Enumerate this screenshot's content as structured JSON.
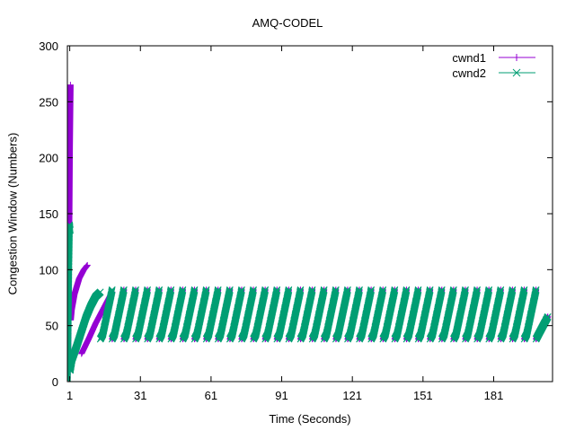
{
  "chart_data": {
    "type": "line",
    "title": "AMQ-CODEL",
    "xlabel": "Time (Seconds)",
    "ylabel": "Congestion Window (Numbers)",
    "xlim": [
      0,
      206
    ],
    "ylim": [
      0,
      300
    ],
    "x_ticks": [
      1,
      31,
      61,
      91,
      121,
      151,
      181
    ],
    "y_ticks": [
      0,
      50,
      100,
      150,
      200,
      250,
      300
    ],
    "grid": false,
    "legend_position": "top-right",
    "series": [
      {
        "name": "cwnd1",
        "color": "#9400d3",
        "marker": "plus",
        "segments": [
          [
            [
              0,
              2
            ],
            [
              0.3,
              30
            ],
            [
              0.5,
              90
            ],
            [
              0.8,
              150
            ],
            [
              1.0,
              210
            ],
            [
              1.3,
              265
            ]
          ],
          [
            [
              1.4,
              55
            ],
            [
              1.8,
              64
            ],
            [
              3,
              78
            ],
            [
              5,
              92
            ],
            [
              7,
              100
            ],
            [
              8.5,
              104
            ]
          ],
          [
            [
              6,
              25
            ],
            [
              9,
              38
            ],
            [
              12,
              52
            ],
            [
              15,
              64
            ],
            [
              18,
              76
            ],
            [
              19,
              80
            ]
          ],
          [
            [
              19,
              38
            ],
            [
              20,
              42
            ],
            [
              24,
              82
            ]
          ],
          [
            [
              24,
              38
            ],
            [
              25,
              42
            ],
            [
              29,
              82
            ]
          ],
          [
            [
              29,
              38
            ],
            [
              30,
              42
            ],
            [
              34,
              82
            ]
          ],
          [
            [
              34,
              38
            ],
            [
              35,
              42
            ],
            [
              39,
              82
            ]
          ],
          [
            [
              39,
              38
            ],
            [
              40,
              42
            ],
            [
              44,
              82
            ]
          ],
          [
            [
              44,
              38
            ],
            [
              45,
              42
            ],
            [
              49,
              82
            ]
          ],
          [
            [
              49,
              38
            ],
            [
              50,
              42
            ],
            [
              54,
              82
            ]
          ],
          [
            [
              54,
              38
            ],
            [
              55,
              42
            ],
            [
              59,
              82
            ]
          ],
          [
            [
              59,
              38
            ],
            [
              60,
              42
            ],
            [
              64,
              82
            ]
          ],
          [
            [
              64,
              38
            ],
            [
              65,
              42
            ],
            [
              69,
              82
            ]
          ],
          [
            [
              69,
              38
            ],
            [
              70,
              42
            ],
            [
              74,
              82
            ]
          ],
          [
            [
              74,
              38
            ],
            [
              75,
              42
            ],
            [
              79,
              82
            ]
          ],
          [
            [
              79,
              38
            ],
            [
              80,
              42
            ],
            [
              84,
              82
            ]
          ],
          [
            [
              84,
              38
            ],
            [
              85,
              42
            ],
            [
              89,
              82
            ]
          ],
          [
            [
              89,
              38
            ],
            [
              90,
              42
            ],
            [
              94,
              82
            ]
          ],
          [
            [
              94,
              38
            ],
            [
              95,
              42
            ],
            [
              99,
              82
            ]
          ],
          [
            [
              99,
              38
            ],
            [
              100,
              42
            ],
            [
              104,
              82
            ]
          ],
          [
            [
              104,
              38
            ],
            [
              105,
              42
            ],
            [
              109,
              82
            ]
          ],
          [
            [
              109,
              38
            ],
            [
              110,
              42
            ],
            [
              114,
              82
            ]
          ],
          [
            [
              114,
              38
            ],
            [
              115,
              42
            ],
            [
              119,
              82
            ]
          ],
          [
            [
              119,
              38
            ],
            [
              120,
              42
            ],
            [
              124,
              82
            ]
          ],
          [
            [
              124,
              38
            ],
            [
              125,
              42
            ],
            [
              129,
              82
            ]
          ],
          [
            [
              129,
              38
            ],
            [
              130,
              42
            ],
            [
              134,
              82
            ]
          ],
          [
            [
              134,
              38
            ],
            [
              135,
              42
            ],
            [
              139,
              82
            ]
          ],
          [
            [
              139,
              38
            ],
            [
              140,
              42
            ],
            [
              144,
              82
            ]
          ],
          [
            [
              144,
              38
            ],
            [
              145,
              42
            ],
            [
              149,
              82
            ]
          ],
          [
            [
              149,
              38
            ],
            [
              150,
              42
            ],
            [
              154,
              82
            ]
          ],
          [
            [
              154,
              38
            ],
            [
              155,
              42
            ],
            [
              159,
              82
            ]
          ],
          [
            [
              159,
              38
            ],
            [
              160,
              42
            ],
            [
              164,
              82
            ]
          ],
          [
            [
              164,
              38
            ],
            [
              165,
              42
            ],
            [
              169,
              82
            ]
          ],
          [
            [
              169,
              38
            ],
            [
              170,
              42
            ],
            [
              174,
              82
            ]
          ],
          [
            [
              174,
              38
            ],
            [
              175,
              42
            ],
            [
              179,
              82
            ]
          ],
          [
            [
              179,
              38
            ],
            [
              180,
              42
            ],
            [
              184,
              82
            ]
          ],
          [
            [
              184,
              38
            ],
            [
              185,
              42
            ],
            [
              189,
              82
            ]
          ],
          [
            [
              189,
              38
            ],
            [
              190,
              42
            ],
            [
              194,
              82
            ]
          ],
          [
            [
              194,
              38
            ],
            [
              195,
              42
            ],
            [
              199,
              82
            ]
          ],
          [
            [
              199,
              38
            ],
            [
              200,
              42
            ],
            [
              204,
              58
            ]
          ]
        ]
      },
      {
        "name": "cwnd2",
        "color": "#009e73",
        "marker": "cross",
        "segments": [
          [
            [
              0,
              2
            ],
            [
              0.3,
              40
            ],
            [
              0.6,
              100
            ],
            [
              0.9,
              140
            ],
            [
              1.2,
              135
            ]
          ],
          [
            [
              1.2,
              10
            ],
            [
              2,
              20
            ],
            [
              4,
              32
            ],
            [
              6,
              45
            ],
            [
              8,
              58
            ],
            [
              10,
              68
            ],
            [
              12,
              76
            ],
            [
              14,
              80
            ]
          ],
          [
            [
              14,
              38
            ],
            [
              15,
              42
            ],
            [
              19,
              82
            ]
          ],
          [
            [
              19,
              38
            ],
            [
              20,
              42
            ],
            [
              24,
              82
            ]
          ],
          [
            [
              24,
              38
            ],
            [
              25,
              42
            ],
            [
              29,
              82
            ]
          ],
          [
            [
              29,
              38
            ],
            [
              30,
              42
            ],
            [
              34,
              82
            ]
          ],
          [
            [
              34,
              38
            ],
            [
              35,
              42
            ],
            [
              39,
              82
            ]
          ],
          [
            [
              39,
              38
            ],
            [
              40,
              42
            ],
            [
              44,
              82
            ]
          ],
          [
            [
              44,
              38
            ],
            [
              45,
              42
            ],
            [
              49,
              82
            ]
          ],
          [
            [
              49,
              38
            ],
            [
              50,
              42
            ],
            [
              54,
              82
            ]
          ],
          [
            [
              54,
              38
            ],
            [
              55,
              42
            ],
            [
              59,
              82
            ]
          ],
          [
            [
              59,
              38
            ],
            [
              60,
              42
            ],
            [
              64,
              82
            ]
          ],
          [
            [
              64,
              38
            ],
            [
              65,
              42
            ],
            [
              69,
              82
            ]
          ],
          [
            [
              69,
              38
            ],
            [
              70,
              42
            ],
            [
              74,
              82
            ]
          ],
          [
            [
              74,
              38
            ],
            [
              75,
              42
            ],
            [
              79,
              82
            ]
          ],
          [
            [
              79,
              38
            ],
            [
              80,
              42
            ],
            [
              84,
              82
            ]
          ],
          [
            [
              84,
              38
            ],
            [
              85,
              42
            ],
            [
              89,
              82
            ]
          ],
          [
            [
              89,
              38
            ],
            [
              90,
              42
            ],
            [
              94,
              82
            ]
          ],
          [
            [
              94,
              38
            ],
            [
              95,
              42
            ],
            [
              99,
              82
            ]
          ],
          [
            [
              99,
              38
            ],
            [
              100,
              42
            ],
            [
              104,
              82
            ]
          ],
          [
            [
              104,
              38
            ],
            [
              105,
              42
            ],
            [
              109,
              82
            ]
          ],
          [
            [
              109,
              38
            ],
            [
              110,
              42
            ],
            [
              114,
              82
            ]
          ],
          [
            [
              114,
              38
            ],
            [
              115,
              42
            ],
            [
              119,
              82
            ]
          ],
          [
            [
              119,
              38
            ],
            [
              120,
              42
            ],
            [
              124,
              82
            ]
          ],
          [
            [
              124,
              38
            ],
            [
              125,
              42
            ],
            [
              129,
              82
            ]
          ],
          [
            [
              129,
              38
            ],
            [
              130,
              42
            ],
            [
              134,
              82
            ]
          ],
          [
            [
              134,
              38
            ],
            [
              135,
              42
            ],
            [
              139,
              82
            ]
          ],
          [
            [
              139,
              38
            ],
            [
              140,
              42
            ],
            [
              144,
              82
            ]
          ],
          [
            [
              144,
              38
            ],
            [
              145,
              42
            ],
            [
              149,
              82
            ]
          ],
          [
            [
              149,
              38
            ],
            [
              150,
              42
            ],
            [
              154,
              82
            ]
          ],
          [
            [
              154,
              38
            ],
            [
              155,
              42
            ],
            [
              159,
              82
            ]
          ],
          [
            [
              159,
              38
            ],
            [
              160,
              42
            ],
            [
              164,
              82
            ]
          ],
          [
            [
              164,
              38
            ],
            [
              165,
              42
            ],
            [
              169,
              82
            ]
          ],
          [
            [
              169,
              38
            ],
            [
              170,
              42
            ],
            [
              174,
              82
            ]
          ],
          [
            [
              174,
              38
            ],
            [
              175,
              42
            ],
            [
              179,
              82
            ]
          ],
          [
            [
              179,
              38
            ],
            [
              180,
              42
            ],
            [
              184,
              82
            ]
          ],
          [
            [
              184,
              38
            ],
            [
              185,
              42
            ],
            [
              189,
              82
            ]
          ],
          [
            [
              189,
              38
            ],
            [
              190,
              42
            ],
            [
              194,
              82
            ]
          ],
          [
            [
              194,
              38
            ],
            [
              195,
              42
            ],
            [
              199,
              82
            ]
          ],
          [
            [
              199,
              38
            ],
            [
              200,
              42
            ],
            [
              204,
              58
            ]
          ]
        ]
      }
    ]
  }
}
